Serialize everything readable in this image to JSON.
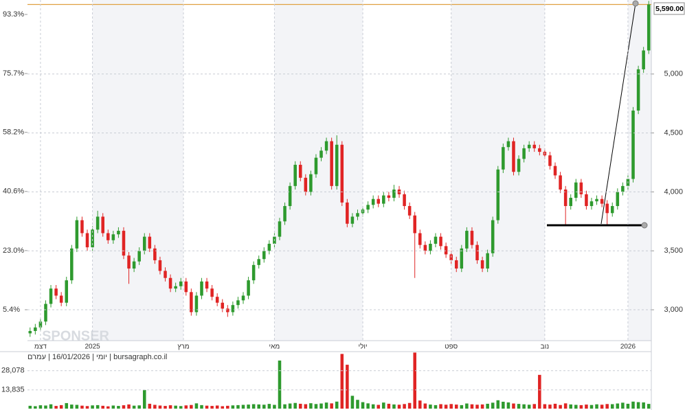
{
  "chart_data": {
    "type": "candlestick",
    "header": "יומי | 16/01/2026 | עמרם | bursagraph.co.il",
    "watermark": "SPONSER",
    "up_color": "#2e9a2e",
    "down_color": "#e02424",
    "last_color": "#e0a040",
    "last_price": {
      "value": 5590,
      "label": "5,590.00"
    },
    "xlim": [
      -0.5,
      119.5
    ],
    "xticks": [
      {
        "value": 2,
        "label": "דצמ"
      },
      {
        "value": 12,
        "label": "2025"
      },
      {
        "value": 29.5,
        "label": "מרץ"
      },
      {
        "value": 47,
        "label": "מאי"
      },
      {
        "value": 64,
        "label": "יולי"
      },
      {
        "value": 81,
        "label": "ספט"
      },
      {
        "value": 99,
        "label": "נוב"
      },
      {
        "value": 115,
        "label": "2026"
      }
    ],
    "ylim": [
      2744,
      5628
    ],
    "yticks": [
      {
        "value": 3000,
        "label": "3,000"
      },
      {
        "value": 3500,
        "label": "3,500"
      },
      {
        "value": 4000,
        "label": "4,000"
      },
      {
        "value": 4500,
        "label": "4,500"
      },
      {
        "value": 5000,
        "label": "5,000"
      }
    ],
    "y2lim": [
      -3.6,
      97.6
    ],
    "y2ticks": [
      {
        "value": 5.4,
        "label": "5.4%"
      },
      {
        "value": 23.0,
        "label": "23.0%"
      },
      {
        "value": 40.6,
        "label": "40.6%"
      },
      {
        "value": 58.2,
        "label": "58.2%"
      },
      {
        "value": 75.7,
        "label": "75.7%"
      },
      {
        "value": 93.3,
        "label": "93.3%"
      }
    ],
    "vlim": [
      0,
      41700
    ],
    "vticks": [
      {
        "value": 13835,
        "label": "13,835"
      },
      {
        "value": 28078,
        "label": "28,078"
      }
    ],
    "grid": true,
    "open": [
      2800,
      2820,
      2850,
      2900,
      3050,
      3180,
      3120,
      3060,
      3250,
      3520,
      3760,
      3650,
      3530,
      3680,
      3790,
      3650,
      3590,
      3640,
      3670,
      3460,
      3350,
      3410,
      3500,
      3620,
      3520,
      3420,
      3330,
      3270,
      3180,
      3200,
      3240,
      3150,
      2980,
      3120,
      3240,
      3180,
      3110,
      3060,
      3010,
      2980,
      3040,
      3080,
      3120,
      3250,
      3380,
      3430,
      3500,
      3560,
      3620,
      3750,
      3880,
      4050,
      4230,
      4120,
      4000,
      4150,
      4290,
      4350,
      4430,
      4050,
      4400,
      3910,
      3730,
      3790,
      3820,
      3850,
      3890,
      3940,
      3900,
      3970,
      3950,
      4020,
      3980,
      3880,
      3800,
      3650,
      3550,
      3500,
      3560,
      3620,
      3540,
      3470,
      3420,
      3350,
      3520,
      3670,
      3550,
      3420,
      3350,
      3480,
      3760,
      4190,
      4380,
      4430,
      4170,
      4280,
      4370,
      4400,
      4370,
      4340,
      4310,
      4220,
      4140,
      4020,
      3880,
      3950,
      4080,
      3980,
      3880,
      3920,
      3940,
      3900,
      3820,
      3880,
      4000,
      4050,
      4110,
      4690,
      5040,
      5200
    ],
    "high": [
      2850,
      2880,
      2930,
      3080,
      3210,
      3210,
      3150,
      3280,
      3550,
      3790,
      3790,
      3680,
      3710,
      3840,
      3820,
      3680,
      3670,
      3700,
      3700,
      3490,
      3440,
      3530,
      3650,
      3650,
      3550,
      3450,
      3360,
      3300,
      3230,
      3270,
      3270,
      3180,
      3150,
      3270,
      3270,
      3210,
      3140,
      3090,
      3040,
      3070,
      3110,
      3150,
      3280,
      3410,
      3460,
      3530,
      3590,
      3650,
      3780,
      3910,
      4080,
      4260,
      4260,
      4150,
      4180,
      4320,
      4380,
      4460,
      4460,
      4480,
      4430,
      3940,
      3820,
      3850,
      3880,
      3920,
      3970,
      3970,
      4000,
      4000,
      4060,
      4050,
      4010,
      3910,
      3830,
      3680,
      3580,
      3590,
      3650,
      3650,
      3570,
      3500,
      3450,
      3550,
      3700,
      3700,
      3580,
      3450,
      3510,
      3790,
      4220,
      4410,
      4460,
      4460,
      4310,
      4400,
      4430,
      4430,
      4400,
      4370,
      4340,
      4250,
      4170,
      4050,
      3980,
      4110,
      4110,
      4010,
      3950,
      3970,
      3970,
      3930,
      3910,
      4030,
      4080,
      4140,
      4720,
      5070,
      5230,
      5620
    ],
    "low": [
      2770,
      2790,
      2820,
      2870,
      3020,
      3090,
      3030,
      3030,
      3220,
      3490,
      3620,
      3500,
      3500,
      3650,
      3620,
      3560,
      3560,
      3610,
      3430,
      3220,
      3320,
      3380,
      3470,
      3490,
      3390,
      3300,
      3240,
      3150,
      3150,
      3170,
      3120,
      2950,
      2950,
      3090,
      3150,
      3080,
      3030,
      2980,
      2940,
      2950,
      3010,
      3050,
      3090,
      3220,
      3350,
      3400,
      3470,
      3530,
      3590,
      3720,
      3850,
      4020,
      4090,
      3970,
      3970,
      4120,
      4260,
      4320,
      4020,
      4020,
      3880,
      3700,
      3700,
      3760,
      3790,
      3820,
      3860,
      3870,
      3870,
      3920,
      3920,
      3950,
      3850,
      3770,
      3270,
      3520,
      3470,
      3470,
      3530,
      3510,
      3440,
      3390,
      3320,
      3320,
      3490,
      3520,
      3390,
      3320,
      3320,
      3450,
      3730,
      4160,
      4350,
      4140,
      4140,
      4250,
      4340,
      4340,
      4310,
      4280,
      4190,
      4110,
      3990,
      3720,
      3850,
      3920,
      3950,
      3850,
      3850,
      3890,
      3870,
      3720,
      3790,
      3850,
      3970,
      4020,
      4080,
      4660,
      5010,
      5170
    ],
    "close": [
      2820,
      2850,
      2900,
      3050,
      3180,
      3120,
      3060,
      3250,
      3520,
      3760,
      3650,
      3530,
      3680,
      3790,
      3650,
      3590,
      3640,
      3670,
      3460,
      3350,
      3410,
      3500,
      3620,
      3520,
      3420,
      3330,
      3270,
      3180,
      3200,
      3240,
      3150,
      2980,
      3120,
      3240,
      3180,
      3110,
      3060,
      3010,
      2980,
      3040,
      3080,
      3120,
      3250,
      3380,
      3430,
      3500,
      3560,
      3620,
      3750,
      3880,
      4050,
      4230,
      4120,
      4000,
      4150,
      4290,
      4350,
      4430,
      4050,
      4400,
      3910,
      3730,
      3790,
      3820,
      3850,
      3890,
      3940,
      3900,
      3970,
      3950,
      4020,
      3980,
      3880,
      3800,
      3650,
      3550,
      3500,
      3560,
      3620,
      3540,
      3470,
      3420,
      3350,
      3520,
      3670,
      3550,
      3420,
      3350,
      3480,
      3760,
      4190,
      4380,
      4430,
      4170,
      4280,
      4370,
      4400,
      4370,
      4340,
      4310,
      4220,
      4140,
      4020,
      3880,
      3950,
      4080,
      3980,
      3880,
      3920,
      3940,
      3900,
      3820,
      3880,
      4000,
      4050,
      4110,
      4690,
      5040,
      5200,
      5590
    ],
    "volume": [
      2100,
      1800,
      2500,
      2300,
      3200,
      2000,
      2600,
      4100,
      3000,
      2800,
      2200,
      1900,
      2400,
      2600,
      2100,
      1700,
      2300,
      2000,
      2500,
      3100,
      2200,
      2400,
      13800,
      3600,
      2800,
      2300,
      2000,
      2500,
      2200,
      1900,
      2400,
      2700,
      3900,
      2600,
      2200,
      2000,
      2300,
      1800,
      2100,
      2400,
      2600,
      2800,
      3000,
      3300,
      3100,
      2900,
      3500,
      2800,
      35600,
      3200,
      3800,
      4200,
      3600,
      3300,
      4000,
      3400,
      3800,
      4500,
      3900,
      5200,
      40500,
      32500,
      9500,
      6500,
      4800,
      3900,
      3200,
      2800,
      4500,
      3600,
      3100,
      2900,
      3400,
      4200,
      41500,
      6000,
      3800,
      3000,
      2600,
      3300,
      2900,
      3400,
      3000,
      2600,
      3800,
      3200,
      2900,
      3100,
      3600,
      4400,
      6200,
      5100,
      4600,
      3800,
      3500,
      3200,
      2900,
      3400,
      25000,
      3300,
      3000,
      3600,
      2700,
      3900,
      3100,
      2800,
      2600,
      3000,
      2700,
      3200,
      2900,
      3400,
      3300,
      3800,
      4400,
      3600,
      5200,
      4800,
      4600,
      3500
    ]
  }
}
